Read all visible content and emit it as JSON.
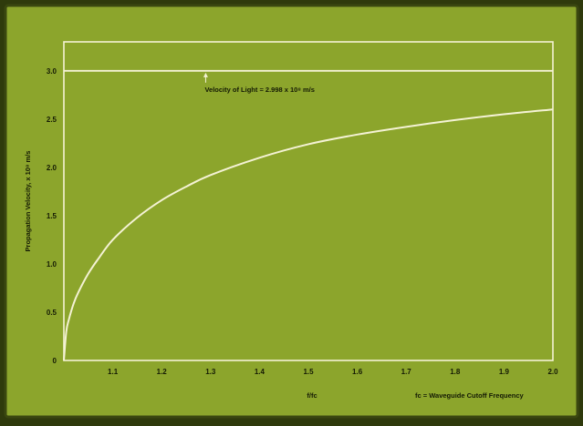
{
  "colors": {
    "background": "#8ca52c",
    "border": "#3a4710",
    "curve": "#f4f2d4",
    "frame": "#f4f2d4",
    "text": "#141a04"
  },
  "chart_data": {
    "type": "line",
    "title": "",
    "xlabel": "f/fc",
    "ylabel": "Propagation Velocity, x 10⁸ m/s",
    "xlim": [
      1.0,
      2.0
    ],
    "ylim": [
      0,
      3.3
    ],
    "x_ticks": [
      1.1,
      1.2,
      1.3,
      1.4,
      1.5,
      1.6,
      1.7,
      1.8,
      1.9,
      2.0
    ],
    "x_tick_labels": [
      "1.1",
      "1.2",
      "1.3",
      "1.4",
      "1.5",
      "1.6",
      "1.7",
      "1.8",
      "1.9",
      "2.0"
    ],
    "y_ticks": [
      0,
      0.5,
      1.0,
      1.5,
      2.0,
      2.5,
      3.0
    ],
    "y_tick_labels": [
      "0",
      "0.5",
      "1.0",
      "1.5",
      "2.0",
      "2.5",
      "3.0"
    ],
    "grid": false,
    "series": [
      {
        "x": [
          1.0,
          1.005,
          1.01,
          1.02,
          1.03,
          1.05,
          1.07,
          1.1,
          1.15,
          1.2,
          1.25,
          1.3,
          1.4,
          1.5,
          1.6,
          1.7,
          1.8,
          1.9,
          2.0
        ],
        "values": [
          0,
          0.3,
          0.42,
          0.59,
          0.71,
          0.9,
          1.05,
          1.25,
          1.48,
          1.66,
          1.8,
          1.92,
          2.1,
          2.24,
          2.34,
          2.42,
          2.49,
          2.55,
          2.6
        ]
      },
      {
        "x": [
          1.0,
          2.0
        ],
        "values": [
          3.0,
          3.0
        ]
      }
    ],
    "annotations": [
      {
        "text": "Velocity of Light = 2.998 x 10⁸ m/s",
        "x": 1.29,
        "y": 3.0
      },
      {
        "text": "fc = Waveguide Cutoff Frequency"
      }
    ]
  }
}
